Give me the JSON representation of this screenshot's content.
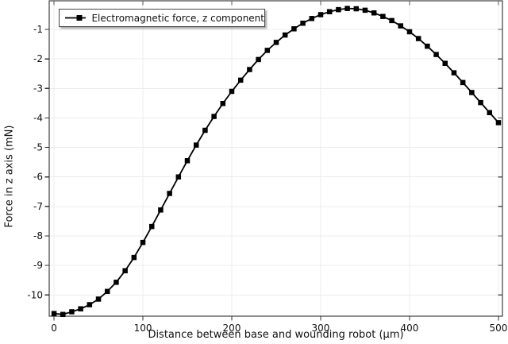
{
  "figure": {
    "background": "#ffffff"
  },
  "chart_data": {
    "type": "line",
    "title": "",
    "xlabel": "Distance between base and wounding robot (μm)",
    "ylabel": "Force in z axis (mN)",
    "legend": [
      "Electromagnetic force, z component"
    ],
    "legend_position": "top-left",
    "grid": true,
    "xlim": [
      -5.4,
      504.5
    ],
    "ylim": [
      -10.72,
      -0.03
    ],
    "x_ticks": [
      0,
      100,
      200,
      300,
      400,
      500
    ],
    "y_ticks": [
      -1,
      -2,
      -3,
      -4,
      -5,
      -6,
      -7,
      -8,
      -9,
      -10
    ],
    "colors": {
      "series": "#000000",
      "grid": "#ececec",
      "frame": "#1a1a1a",
      "tick": "#333333",
      "tick_inner": "#555555",
      "text": "#111111",
      "background": "#ffffff"
    },
    "series": [
      {
        "name": "Electromagnetic force, z component",
        "color": "#000000",
        "marker": "square",
        "marker_size": 6.5,
        "line_width": 1.8,
        "x": [
          0,
          10,
          20,
          30,
          40,
          50,
          60,
          70,
          80,
          90,
          100,
          110,
          120,
          130,
          140,
          150,
          160,
          170,
          180,
          190,
          200,
          210,
          220,
          230,
          240,
          250,
          260,
          270,
          280,
          290,
          300,
          310,
          320,
          330,
          340,
          350,
          360,
          370,
          380,
          390,
          400,
          410,
          420,
          430,
          440,
          450,
          460,
          470,
          480,
          490,
          500
        ],
        "y": [
          -10.63,
          -10.66,
          -10.57,
          -10.47,
          -10.33,
          -10.14,
          -9.88,
          -9.57,
          -9.18,
          -8.73,
          -8.22,
          -7.68,
          -7.12,
          -6.56,
          -6.0,
          -5.45,
          -4.92,
          -4.42,
          -3.95,
          -3.51,
          -3.1,
          -2.72,
          -2.36,
          -2.02,
          -1.71,
          -1.44,
          -1.19,
          -0.98,
          -0.79,
          -0.63,
          -0.5,
          -0.4,
          -0.33,
          -0.29,
          -0.3,
          -0.35,
          -0.44,
          -0.56,
          -0.7,
          -0.88,
          -1.08,
          -1.31,
          -1.57,
          -1.85,
          -2.15,
          -2.47,
          -2.8,
          -3.14,
          -3.48,
          -3.82,
          -4.16
        ]
      }
    ]
  }
}
